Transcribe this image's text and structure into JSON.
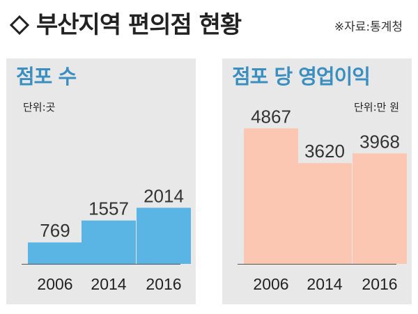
{
  "header": {
    "title": "부산지역 편의점 현황",
    "source": "※자료:통계청"
  },
  "colors": {
    "panel_bg": "#e8e8e8",
    "left_bar": "#5ab4e4",
    "right_bar": "#fcc7b2",
    "title_text": "#3a8fc0"
  },
  "chart_data": [
    {
      "type": "bar",
      "title": "점포 수",
      "unit": "단위:곳",
      "categories": [
        "2006",
        "2014",
        "2016"
      ],
      "values": [
        769,
        1557,
        2014
      ],
      "ylim": [
        0,
        5500
      ],
      "grid": false
    },
    {
      "type": "bar",
      "title": "점포 당 영업이익",
      "unit": "단위:만 원",
      "categories": [
        "2006",
        "2014",
        "2016"
      ],
      "values": [
        4867,
        3620,
        3968
      ],
      "ylim": [
        0,
        5500
      ],
      "grid": false
    }
  ]
}
